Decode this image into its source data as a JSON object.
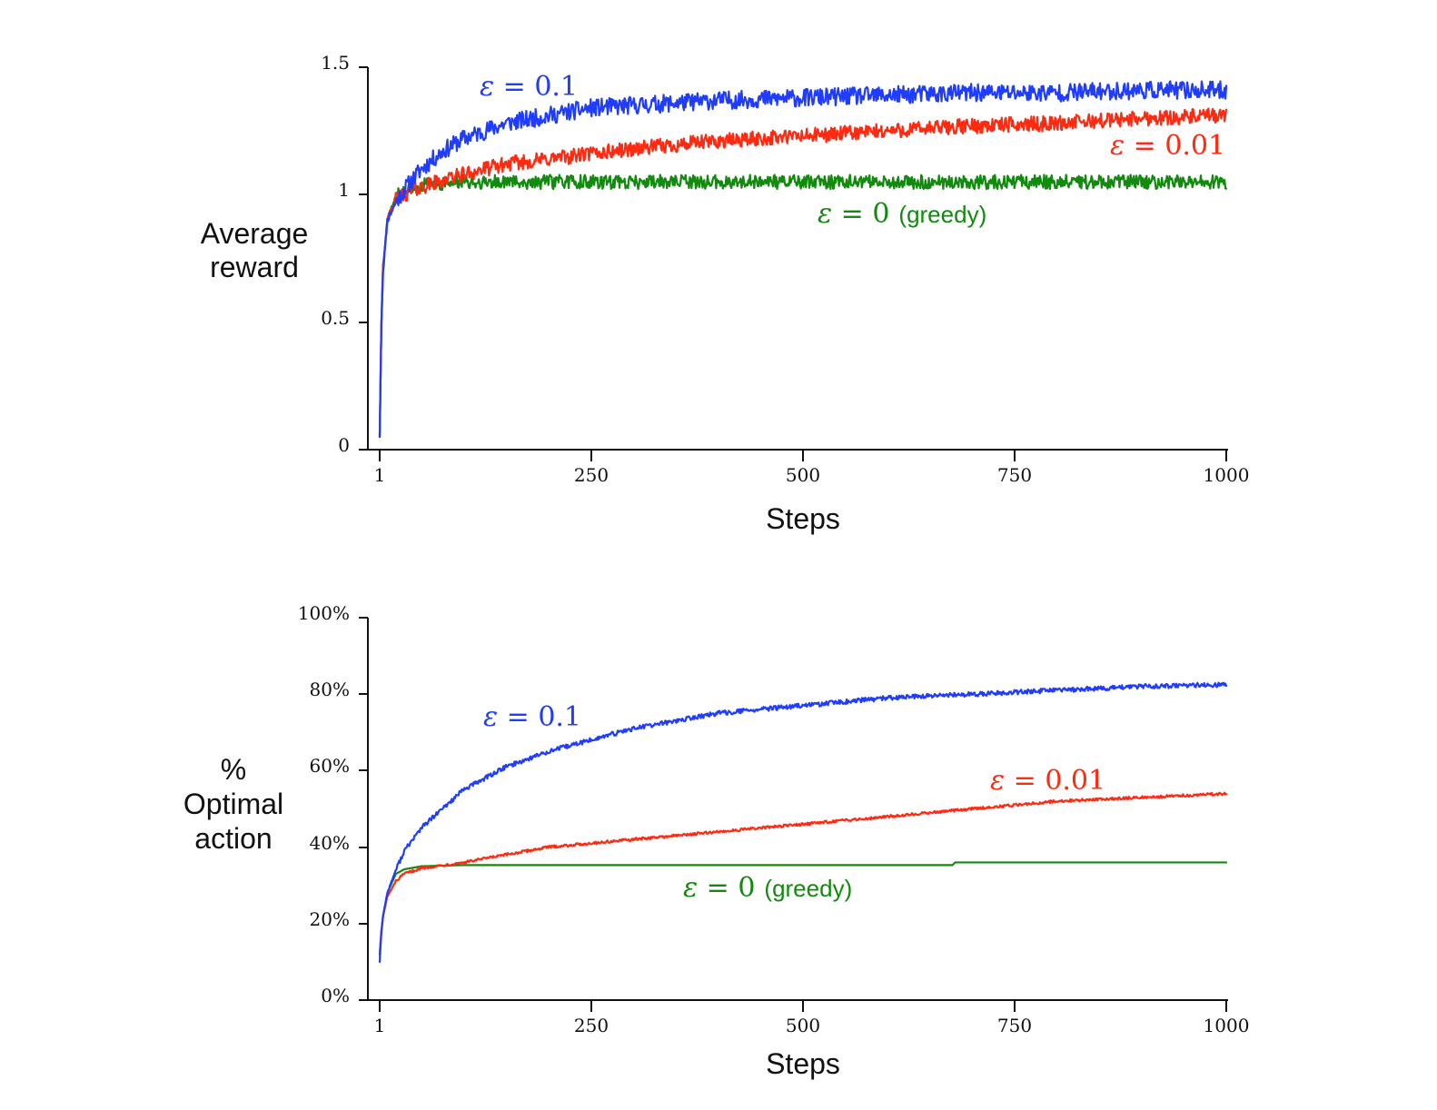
{
  "chart_data": [
    {
      "type": "line",
      "name": "average-reward",
      "xlabel": "Steps",
      "ylabel_lines": [
        "Average",
        "reward"
      ],
      "xlim": [
        1,
        1000
      ],
      "ylim": [
        0,
        1.5
      ],
      "x_ticks": [
        1,
        250,
        500,
        750,
        1000
      ],
      "x_tick_labels": [
        "1",
        "250",
        "500",
        "750",
        "1000"
      ],
      "y_ticks": [
        0,
        0.5,
        1,
        1.5
      ],
      "y_tick_labels": [
        "0",
        "0.5",
        "1",
        "1.5"
      ],
      "series": [
        {
          "name_eps": "ε = ",
          "name_value": "0.1",
          "name_extra": "",
          "color": "#1f3cff",
          "noise": 0.035,
          "x": [
            1,
            3,
            5,
            10,
            20,
            30,
            50,
            75,
            100,
            150,
            200,
            250,
            300,
            400,
            500,
            600,
            700,
            800,
            900,
            1000
          ],
          "y": [
            0.05,
            0.5,
            0.7,
            0.9,
            0.97,
            1.02,
            1.1,
            1.17,
            1.22,
            1.28,
            1.31,
            1.34,
            1.35,
            1.37,
            1.38,
            1.39,
            1.4,
            1.4,
            1.41,
            1.41
          ]
        },
        {
          "name_eps": "ε = ",
          "name_value": "0.01",
          "name_extra": "",
          "color": "#ff2a10",
          "noise": 0.03,
          "x": [
            1,
            3,
            5,
            10,
            20,
            30,
            50,
            100,
            150,
            200,
            300,
            400,
            500,
            600,
            700,
            800,
            900,
            1000
          ],
          "y": [
            0.05,
            0.5,
            0.72,
            0.9,
            0.98,
            1.0,
            1.03,
            1.08,
            1.12,
            1.14,
            1.18,
            1.21,
            1.23,
            1.25,
            1.27,
            1.28,
            1.3,
            1.31
          ]
        },
        {
          "name_eps": "ε = ",
          "name_value": "0",
          "name_extra": "(greedy)",
          "color": "#118a0e",
          "noise": 0.028,
          "x": [
            1,
            3,
            5,
            10,
            20,
            30,
            50,
            100,
            200,
            300,
            400,
            500,
            600,
            700,
            800,
            900,
            1000
          ],
          "y": [
            0.05,
            0.5,
            0.72,
            0.9,
            0.99,
            1.02,
            1.04,
            1.05,
            1.05,
            1.05,
            1.05,
            1.05,
            1.05,
            1.05,
            1.05,
            1.05,
            1.05
          ]
        }
      ]
    },
    {
      "type": "line",
      "name": "optimal-action",
      "xlabel": "Steps",
      "ylabel_lines": [
        "%",
        "Optimal",
        "action"
      ],
      "xlim": [
        1,
        1000
      ],
      "ylim": [
        0,
        100
      ],
      "x_ticks": [
        1,
        250,
        500,
        750,
        1000
      ],
      "x_tick_labels": [
        "1",
        "250",
        "500",
        "750",
        "1000"
      ],
      "y_ticks": [
        0,
        20,
        40,
        60,
        80,
        100
      ],
      "y_tick_labels": [
        "0%",
        "20%",
        "40%",
        "60%",
        "80%",
        "100%"
      ],
      "series": [
        {
          "name_eps": "ε = ",
          "name_value": "0.1",
          "name_extra": "",
          "color": "#1f3cff",
          "noise": 0.6,
          "x": [
            1,
            3,
            5,
            10,
            20,
            30,
            50,
            75,
            100,
            150,
            200,
            250,
            300,
            400,
            500,
            600,
            700,
            800,
            900,
            1000
          ],
          "y": [
            10,
            18,
            22,
            28,
            34,
            39,
            45,
            50,
            55,
            61,
            65,
            68,
            71,
            75,
            77,
            79,
            80,
            81,
            82,
            82.5
          ]
        },
        {
          "name_eps": "ε = ",
          "name_value": "0.01",
          "name_extra": "",
          "color": "#ff2a10",
          "noise": 0.35,
          "x": [
            1,
            3,
            5,
            10,
            20,
            30,
            50,
            100,
            150,
            200,
            250,
            300,
            400,
            500,
            600,
            700,
            800,
            900,
            1000
          ],
          "y": [
            12,
            18,
            22,
            27,
            31,
            33,
            34.5,
            36,
            38,
            40,
            41,
            42,
            44,
            46,
            48,
            50,
            52,
            53,
            54
          ]
        },
        {
          "name_eps": "ε = ",
          "name_value": "0",
          "name_extra": "(greedy)",
          "color": "#118a0e",
          "noise": 0,
          "x": [
            1,
            3,
            5,
            10,
            20,
            30,
            50,
            100,
            200,
            300,
            400,
            500,
            600,
            677,
            680,
            700,
            800,
            900,
            1000
          ],
          "y": [
            12,
            18,
            22,
            28,
            33,
            34.2,
            35,
            35.3,
            35.3,
            35.3,
            35.3,
            35.3,
            35.3,
            35.3,
            36,
            36,
            36,
            36,
            36
          ]
        }
      ]
    }
  ]
}
